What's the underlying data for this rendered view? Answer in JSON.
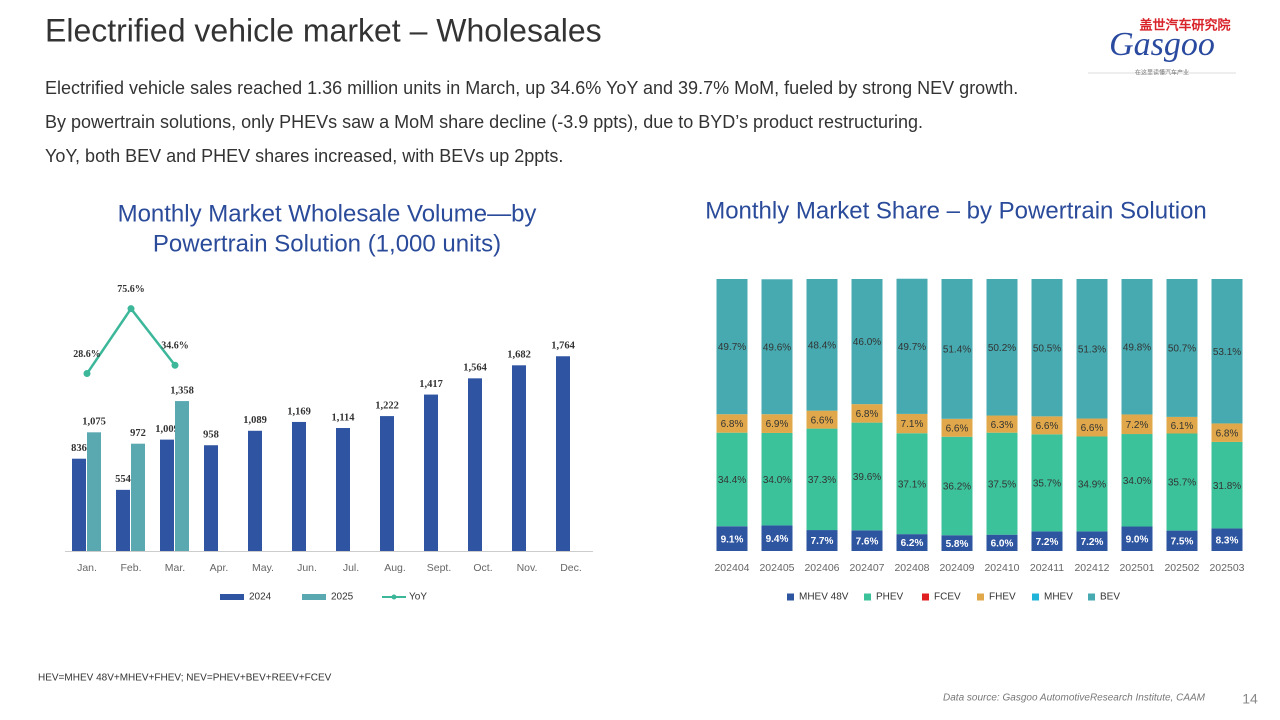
{
  "header": {
    "title": "Electrified vehicle market – Wholesales",
    "lines": [
      "Electrified vehicle sales reached 1.36 million units in March, up 34.6% YoY and 39.7% MoM, fueled by strong NEV growth.",
      "By powertrain solutions, only PHEVs saw a MoM share decline (-3.9 ppts), due to BYD’s product restructuring.",
      "YoY, both BEV and PHEV shares increased, with BEVs up 2ppts."
    ],
    "logo_cn": "盖世汽车研究院",
    "logo": "Gasgoo",
    "logo_tagline": "在这里读懂汽车产业"
  },
  "footnote": "HEV=MHEV 48V+MHEV+FHEV; NEV=PHEV+BEV+REEV+FCEV",
  "source": "Data source: Gasgoo AutomotiveResearch Institute, CAAM",
  "page_number": "14",
  "chart_data": [
    {
      "type": "bar",
      "title": [
        "Monthly Market Wholesale Volume—by",
        "Powertrain Solution (1,000 units)"
      ],
      "categories": [
        "Jan.",
        "Feb.",
        "Mar.",
        "Apr.",
        "May.",
        "Jun.",
        "Jul.",
        "Aug.",
        "Sept.",
        "Oct.",
        "Nov.",
        "Dec."
      ],
      "ylim": [
        0,
        2500
      ],
      "y2lim": [
        -100,
        100
      ],
      "series": [
        {
          "name": "2024",
          "color": "#2f55a2",
          "values": [
            836,
            554,
            1009,
            958,
            1089,
            1169,
            1114,
            1222,
            1417,
            1564,
            1682,
            1764
          ],
          "value_labels": [
            "836",
            "554",
            "1,009",
            "958",
            "1,089",
            "1,169",
            "1,114",
            "1,222",
            "1,417",
            "1,564",
            "1,682",
            "1,764"
          ]
        },
        {
          "name": "2025",
          "color": "#5aa8b0",
          "values": [
            1075,
            972,
            1358,
            null,
            null,
            null,
            null,
            null,
            null,
            null,
            null,
            null
          ],
          "value_labels": [
            "1,075",
            "972",
            "1,358",
            null,
            null,
            null,
            null,
            null,
            null,
            null,
            null,
            null
          ]
        },
        {
          "name": "YoY",
          "type": "line",
          "axis": "y2",
          "color": "#3cb79a",
          "values": [
            28.6,
            75.6,
            34.6,
            null,
            null,
            null,
            null,
            null,
            null,
            null,
            null,
            null
          ],
          "value_labels": [
            "28.6%",
            "75.6%",
            "34.6%",
            null,
            null,
            null,
            null,
            null,
            null,
            null,
            null,
            null
          ]
        }
      ]
    },
    {
      "type": "bar",
      "stacked": true,
      "title": "Monthly Market Share – by Powertrain Solution",
      "categories": [
        "202404",
        "202405",
        "202406",
        "202407",
        "202408",
        "202409",
        "202410",
        "202411",
        "202412",
        "202501",
        "202502",
        "202503"
      ],
      "ylim": [
        0,
        100
      ],
      "series": [
        {
          "name": "MHEV 48V",
          "color": "#2e55a0",
          "values": [
            9.1,
            9.4,
            7.7,
            7.6,
            6.2,
            5.8,
            6.0,
            7.2,
            7.2,
            9.0,
            7.5,
            8.3
          ],
          "value_labels": [
            "9.1%",
            "9.4%",
            "7.7%",
            "7.6%",
            "6.2%",
            "5.8%",
            "6.0%",
            "7.2%",
            "7.2%",
            "9.0%",
            "7.5%",
            "8.3%"
          ]
        },
        {
          "name": "PHEV",
          "color": "#3cc29a",
          "values": [
            34.4,
            34.0,
            37.3,
            39.6,
            37.1,
            36.2,
            37.5,
            35.7,
            34.9,
            34.0,
            35.7,
            31.8
          ],
          "value_labels": [
            "34.4%",
            "34.0%",
            "37.3%",
            "39.6%",
            "37.1%",
            "36.2%",
            "37.5%",
            "35.7%",
            "34.9%",
            "34.0%",
            "35.7%",
            "31.8%"
          ]
        },
        {
          "name": "FCEV",
          "color": "#e02020",
          "values": [
            0,
            0,
            0,
            0,
            0,
            0,
            0,
            0,
            0,
            0,
            0,
            0
          ]
        },
        {
          "name": "FHEV",
          "color": "#e0a84a",
          "values": [
            6.8,
            6.9,
            6.6,
            6.8,
            7.1,
            6.6,
            6.3,
            6.6,
            6.6,
            7.2,
            6.1,
            6.8
          ],
          "value_labels": [
            "6.8%",
            "6.9%",
            "6.6%",
            "6.8%",
            "7.1%",
            "6.6%",
            "6.3%",
            "6.6%",
            "6.6%",
            "7.2%",
            "6.1%",
            "6.8%"
          ]
        },
        {
          "name": "MHEV",
          "color": "#1fb4d8",
          "values": [
            0,
            0,
            0,
            0,
            0,
            0,
            0,
            0,
            0,
            0,
            0,
            0
          ]
        },
        {
          "name": "BEV",
          "color": "#46aab0",
          "values": [
            49.7,
            49.6,
            48.4,
            46.0,
            49.7,
            51.4,
            50.2,
            50.5,
            51.3,
            49.8,
            50.7,
            53.1
          ],
          "value_labels": [
            "49.7%",
            "49.6%",
            "48.4%",
            "46.0%",
            "49.7%",
            "51.4%",
            "50.2%",
            "50.5%",
            "51.3%",
            "49.8%",
            "50.7%",
            "53.1%"
          ]
        }
      ]
    }
  ]
}
